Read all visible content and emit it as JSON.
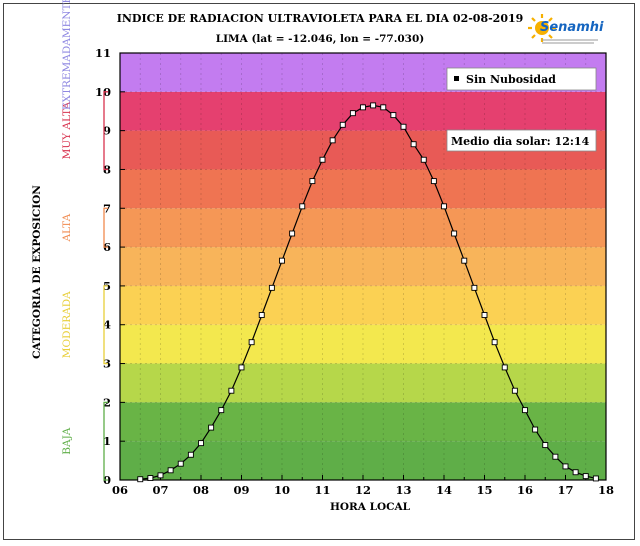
{
  "chart_data": {
    "type": "line",
    "title": "INDICE DE RADIACION ULTRAVIOLETA PARA EL DIA 02-08-2019",
    "subtitle": "LIMA (lat = -12.046, lon = -77.030)",
    "xlabel": "HORA LOCAL",
    "ylabel": "CATEGORIA DE EXPOSICION",
    "xlim": [
      6,
      18
    ],
    "ylim": [
      0,
      11
    ],
    "x_tick_labels": [
      "06",
      "07",
      "08",
      "09",
      "10",
      "11",
      "12",
      "13",
      "14",
      "15",
      "16",
      "17",
      "18"
    ],
    "y_tick_labels": [
      "0",
      "1",
      "2",
      "3",
      "4",
      "5",
      "6",
      "7",
      "8",
      "9",
      "10",
      "11"
    ],
    "grid": true,
    "legend_placement": "top-right",
    "bands": [
      {
        "from": 0,
        "to": 1,
        "color": "#5fae48"
      },
      {
        "from": 1,
        "to": 2,
        "color": "#69b446"
      },
      {
        "from": 2,
        "to": 3,
        "color": "#b6d74a"
      },
      {
        "from": 3,
        "to": 4,
        "color": "#f3e84e"
      },
      {
        "from": 4,
        "to": 5,
        "color": "#fbd153"
      },
      {
        "from": 5,
        "to": 6,
        "color": "#f8b45a"
      },
      {
        "from": 6,
        "to": 7,
        "color": "#f59756"
      },
      {
        "from": 7,
        "to": 8,
        "color": "#ef7452"
      },
      {
        "from": 8,
        "to": 9,
        "color": "#e85a56"
      },
      {
        "from": 9,
        "to": 10,
        "color": "#e5406f"
      },
      {
        "from": 10,
        "to": 11,
        "color": "#c37cf0"
      }
    ],
    "categories": [
      {
        "label": "BAJA",
        "from": 0,
        "to": 2,
        "color": "#5fae48"
      },
      {
        "label": "MODERADA",
        "from": 3,
        "to": 5,
        "color": "#e8cf3a"
      },
      {
        "label": "ALTA",
        "from": 6,
        "to": 7,
        "color": "#f08a4f"
      },
      {
        "label": "MUY ALTA",
        "from": 8,
        "to": 10,
        "color": "#d8334f"
      },
      {
        "label": "EXTREMADAMENTE",
        "from": 11,
        "to": 11,
        "color": "#8f88e2"
      }
    ],
    "series": [
      {
        "name": "Sin Nubosidad",
        "x": [
          6.5,
          6.75,
          7.0,
          7.25,
          7.5,
          7.75,
          8.0,
          8.25,
          8.5,
          8.75,
          9.0,
          9.25,
          9.5,
          9.75,
          10.0,
          10.25,
          10.5,
          10.75,
          11.0,
          11.25,
          11.5,
          11.75,
          12.0,
          12.25,
          12.5,
          12.75,
          13.0,
          13.25,
          13.5,
          13.75,
          14.0,
          14.25,
          14.5,
          14.75,
          15.0,
          15.25,
          15.5,
          15.75,
          16.0,
          16.25,
          16.5,
          16.75,
          17.0,
          17.25,
          17.5,
          17.75
        ],
        "y": [
          0.02,
          0.05,
          0.12,
          0.25,
          0.42,
          0.65,
          0.95,
          1.35,
          1.8,
          2.3,
          2.9,
          3.55,
          4.25,
          4.95,
          5.65,
          6.35,
          7.05,
          7.7,
          8.25,
          8.75,
          9.15,
          9.45,
          9.6,
          9.65,
          9.6,
          9.4,
          9.1,
          8.65,
          8.25,
          7.7,
          7.05,
          6.35,
          5.65,
          4.95,
          4.25,
          3.55,
          2.9,
          2.3,
          1.8,
          1.3,
          0.9,
          0.6,
          0.35,
          0.2,
          0.1,
          0.04
        ]
      }
    ],
    "annotations": [
      "Medio dia solar: 12:14"
    ]
  },
  "logo": {
    "name": "Senamhi"
  }
}
